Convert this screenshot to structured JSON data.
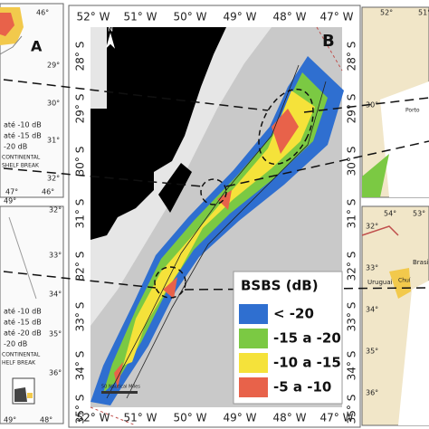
{
  "panel_a": {
    "label": "A",
    "top_lon": "46°",
    "lat_labels": [
      "29°",
      "30°",
      "31°",
      "32°"
    ],
    "legend": [
      "até -10 dB",
      "até -15 dB",
      "-20 dB"
    ],
    "shelf_break": [
      "CONTINENTAL",
      "SHELF BREAK"
    ],
    "bottom_lon": [
      "47°",
      "46°"
    ]
  },
  "panel_a2": {
    "top_lon": "49°",
    "lat_labels": [
      "32°",
      "33°",
      "34°",
      "35°",
      "36°"
    ],
    "legend": [
      "até -10 dB",
      "até -15 dB",
      "até -20 dB",
      "-20 dB"
    ],
    "shelf_break": [
      "CONTINENTAL",
      "HELF BREAK"
    ],
    "bottom_lon": [
      "49°",
      "48°"
    ]
  },
  "panel_b": {
    "label": "B",
    "north": "N",
    "lon_labels": [
      "52° W",
      "51° W",
      "50° W",
      "49° W",
      "48° W",
      "47° W"
    ],
    "lat_labels": [
      "28° S",
      "29° S",
      "30° S",
      "31° S",
      "32° S",
      "33° S",
      "34° S",
      "35° S"
    ],
    "legend": {
      "title": "BSBS (dB)",
      "items": [
        "< -20",
        "-15 a -20",
        "-10 a -15",
        "-5 a -10"
      ]
    },
    "scale": "50 Nautical Miles"
  },
  "panel_c": {
    "lon_labels": [
      "52°",
      "51°"
    ],
    "lat_label": "30°",
    "place": "Porto"
  },
  "panel_d": {
    "lon_labels": [
      "54°",
      "53°"
    ],
    "lat_labels": [
      "32°",
      "33°",
      "34°",
      "35°",
      "36°"
    ],
    "places": [
      "Brasil",
      "Uruguai",
      "Chuí"
    ]
  }
}
